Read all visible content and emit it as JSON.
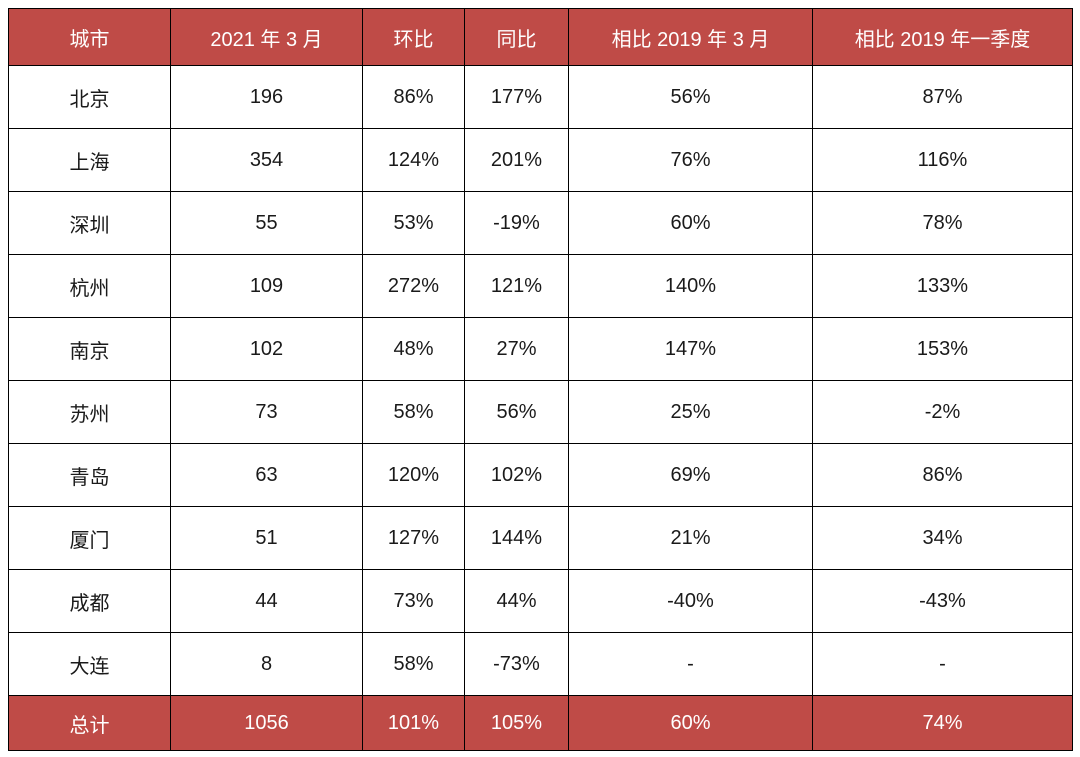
{
  "chart_data": {
    "type": "table",
    "columns": [
      "城市",
      "2021 年 3 月",
      "环比",
      "同比",
      "相比 2019 年 3 月",
      "相比 2019 年一季度"
    ],
    "rows": [
      [
        "北京",
        "196",
        "86%",
        "177%",
        "56%",
        "87%"
      ],
      [
        "上海",
        "354",
        "124%",
        "201%",
        "76%",
        "116%"
      ],
      [
        "深圳",
        "55",
        "53%",
        "-19%",
        "60%",
        "78%"
      ],
      [
        "杭州",
        "109",
        "272%",
        "121%",
        "140%",
        "133%"
      ],
      [
        "南京",
        "102",
        "48%",
        "27%",
        "147%",
        "153%"
      ],
      [
        "苏州",
        "73",
        "58%",
        "56%",
        "25%",
        "-2%"
      ],
      [
        "青岛",
        "63",
        "120%",
        "102%",
        "69%",
        "86%"
      ],
      [
        "厦门",
        "51",
        "127%",
        "144%",
        "21%",
        "34%"
      ],
      [
        "成都",
        "44",
        "73%",
        "44%",
        "-40%",
        "-43%"
      ],
      [
        "大连",
        "8",
        "58%",
        "-73%",
        "-",
        "-"
      ]
    ],
    "total_row": [
      "总计",
      "1056",
      "101%",
      "105%",
      "60%",
      "74%"
    ]
  },
  "colors": {
    "header_bg": "#bf4b47",
    "header_text": "#ffffff",
    "body_bg": "#ffffff",
    "body_text": "#1a1a1a",
    "border": "#000000"
  }
}
